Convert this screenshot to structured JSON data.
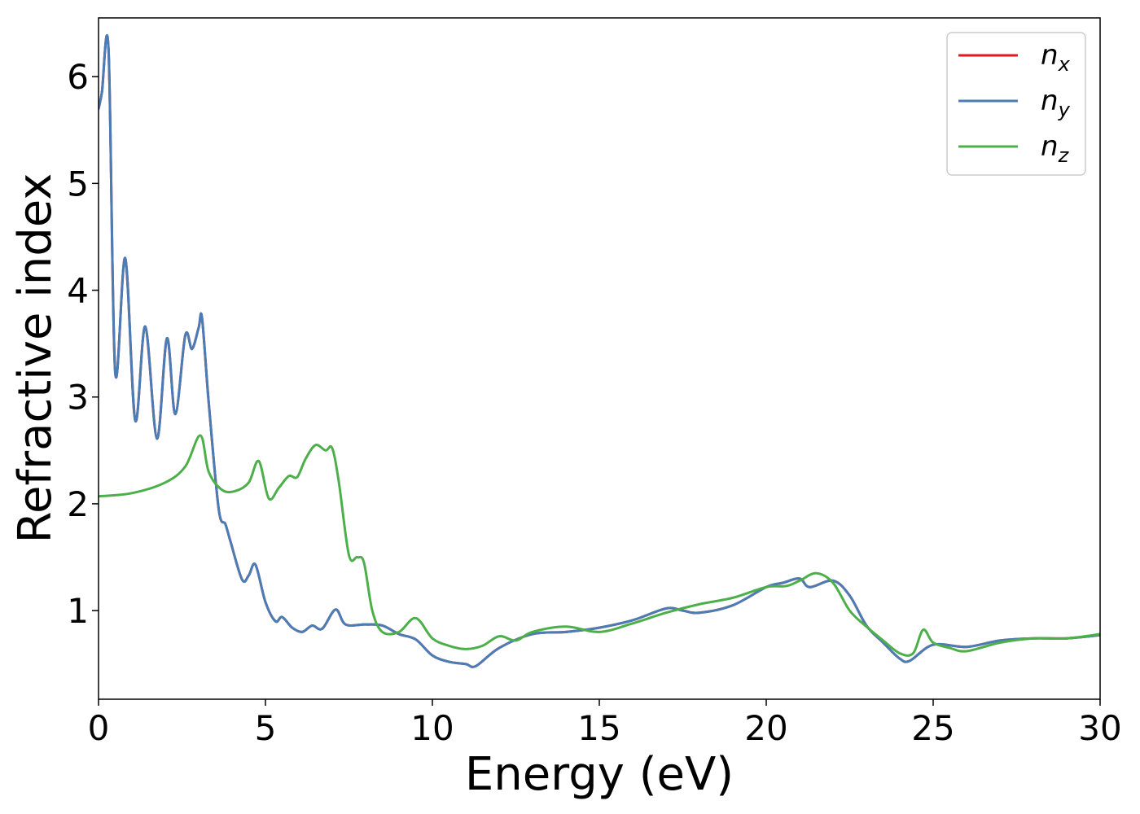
{
  "chart_data": {
    "type": "line",
    "title": "",
    "xlabel": "Energy (eV)",
    "ylabel": "Refractive index",
    "xlim": [
      0,
      30
    ],
    "ylim": [
      0.17,
      6.55
    ],
    "xticks": [
      0,
      5,
      10,
      15,
      20,
      25,
      30
    ],
    "yticks": [
      1,
      2,
      3,
      4,
      5,
      6
    ],
    "grid": false,
    "legend_position": "top-right",
    "series": [
      {
        "name": "n_x",
        "legend_base": "n",
        "legend_sub": "x",
        "color": "#e31a1c",
        "hidden_behind": "n_y",
        "x": [
          0,
          0.1,
          0.3,
          0.5,
          0.8,
          1.1,
          1.4,
          1.75,
          2.05,
          2.3,
          2.6,
          2.8,
          3.0,
          3.1,
          3.3,
          3.6,
          3.8,
          3.95,
          4.3,
          4.5,
          4.7,
          5.0,
          5.3,
          5.5,
          5.8,
          6.1,
          6.4,
          6.7,
          7.1,
          7.4,
          8.0,
          8.5,
          9.0,
          9.5,
          10.0,
          10.5,
          11.0,
          11.3,
          12.0,
          13.0,
          14.0,
          15.0,
          16.0,
          17.0,
          17.5,
          18.0,
          19.0,
          20.0,
          20.5,
          21.0,
          21.3,
          22.0,
          22.5,
          23.0,
          23.5,
          24.0,
          24.3,
          25.0,
          26.0,
          27.0,
          28.0,
          29.0,
          30.0
        ],
        "y": [
          5.7,
          5.85,
          6.25,
          3.23,
          4.3,
          2.78,
          3.66,
          2.61,
          3.55,
          2.84,
          3.58,
          3.45,
          3.65,
          3.74,
          2.95,
          1.95,
          1.81,
          1.65,
          1.29,
          1.33,
          1.43,
          1.08,
          0.9,
          0.94,
          0.84,
          0.8,
          0.86,
          0.83,
          1.01,
          0.87,
          0.87,
          0.86,
          0.78,
          0.73,
          0.58,
          0.52,
          0.5,
          0.48,
          0.65,
          0.78,
          0.8,
          0.84,
          0.91,
          1.02,
          1.0,
          0.98,
          1.05,
          1.22,
          1.26,
          1.3,
          1.22,
          1.28,
          1.14,
          0.86,
          0.7,
          0.55,
          0.53,
          0.68,
          0.66,
          0.72,
          0.74,
          0.74,
          0.77
        ]
      },
      {
        "name": "n_y",
        "legend_base": "n",
        "legend_sub": "y",
        "color": "#4a7db5",
        "x": [
          0,
          0.1,
          0.3,
          0.5,
          0.8,
          1.1,
          1.4,
          1.75,
          2.05,
          2.3,
          2.6,
          2.8,
          3.0,
          3.1,
          3.3,
          3.6,
          3.8,
          3.95,
          4.3,
          4.5,
          4.7,
          5.0,
          5.3,
          5.5,
          5.8,
          6.1,
          6.4,
          6.7,
          7.1,
          7.4,
          8.0,
          8.5,
          9.0,
          9.5,
          10.0,
          10.5,
          11.0,
          11.3,
          12.0,
          13.0,
          14.0,
          15.0,
          16.0,
          17.0,
          17.5,
          18.0,
          19.0,
          20.0,
          20.5,
          21.0,
          21.3,
          22.0,
          22.5,
          23.0,
          23.5,
          24.0,
          24.3,
          25.0,
          26.0,
          27.0,
          28.0,
          29.0,
          30.0
        ],
        "y": [
          5.7,
          5.85,
          6.25,
          3.23,
          4.3,
          2.78,
          3.66,
          2.61,
          3.55,
          2.84,
          3.58,
          3.45,
          3.65,
          3.74,
          2.95,
          1.95,
          1.81,
          1.65,
          1.29,
          1.33,
          1.43,
          1.08,
          0.9,
          0.94,
          0.84,
          0.8,
          0.86,
          0.83,
          1.01,
          0.87,
          0.87,
          0.86,
          0.78,
          0.73,
          0.58,
          0.52,
          0.5,
          0.48,
          0.65,
          0.78,
          0.8,
          0.84,
          0.91,
          1.02,
          1.0,
          0.98,
          1.05,
          1.22,
          1.26,
          1.3,
          1.22,
          1.28,
          1.14,
          0.86,
          0.7,
          0.55,
          0.53,
          0.68,
          0.66,
          0.72,
          0.74,
          0.74,
          0.77
        ]
      },
      {
        "name": "n_z",
        "legend_base": "n",
        "legend_sub": "z",
        "color": "#4daf4a",
        "x": [
          0,
          1.0,
          2.0,
          2.6,
          3.05,
          3.3,
          3.7,
          4.1,
          4.5,
          4.8,
          5.1,
          5.4,
          5.7,
          5.95,
          6.2,
          6.5,
          6.8,
          7.0,
          7.2,
          7.5,
          7.75,
          7.95,
          8.2,
          8.5,
          9.0,
          9.5,
          10.0,
          10.5,
          11.0,
          11.5,
          12.0,
          12.5,
          13.0,
          14.0,
          15.0,
          16.0,
          17.0,
          18.0,
          19.0,
          20.0,
          20.6,
          21.0,
          21.5,
          22.0,
          22.5,
          23.0,
          23.5,
          24.0,
          24.4,
          24.7,
          25.0,
          25.5,
          26.0,
          27.0,
          28.0,
          29.0,
          30.0
        ],
        "y": [
          2.07,
          2.1,
          2.2,
          2.35,
          2.64,
          2.3,
          2.13,
          2.12,
          2.2,
          2.4,
          2.05,
          2.15,
          2.26,
          2.25,
          2.42,
          2.55,
          2.5,
          2.52,
          2.2,
          1.52,
          1.5,
          1.45,
          1.0,
          0.8,
          0.8,
          0.93,
          0.74,
          0.67,
          0.64,
          0.67,
          0.76,
          0.72,
          0.8,
          0.85,
          0.8,
          0.88,
          0.98,
          1.06,
          1.12,
          1.22,
          1.23,
          1.28,
          1.35,
          1.26,
          1.0,
          0.85,
          0.72,
          0.6,
          0.6,
          0.82,
          0.7,
          0.65,
          0.62,
          0.7,
          0.74,
          0.74,
          0.78
        ]
      }
    ]
  }
}
